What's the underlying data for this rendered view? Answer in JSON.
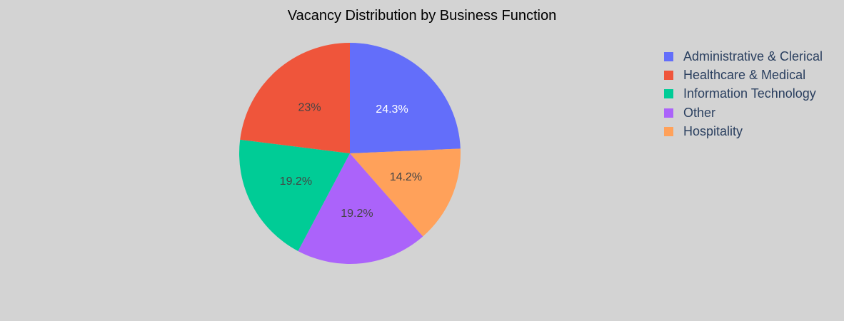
{
  "chart_data": {
    "type": "pie",
    "title": "Vacancy Distribution by Business Function",
    "slices": [
      {
        "label": "Administrative & Clerical",
        "value": 24.3,
        "text": "24.3%",
        "color": "#636efa",
        "text_color": "#ffffff"
      },
      {
        "label": "Hospitality",
        "value": 14.2,
        "text": "14.2%",
        "color": "#ffa15a",
        "text_color": "#444444"
      },
      {
        "label": "Other",
        "value": 19.2,
        "text": "19.2%",
        "color": "#ab63fa",
        "text_color": "#444444"
      },
      {
        "label": "Information Technology",
        "value": 19.2,
        "text": "19.2%",
        "color": "#00cc96",
        "text_color": "#444444"
      },
      {
        "label": "Healthcare & Medical",
        "value": 23,
        "text": "23%",
        "color": "#ef553b",
        "text_color": "#444444"
      }
    ],
    "legend": [
      {
        "label": "Administrative & Clerical",
        "color": "#636efa"
      },
      {
        "label": "Healthcare & Medical",
        "color": "#ef553b"
      },
      {
        "label": "Information Technology",
        "color": "#00cc96"
      },
      {
        "label": "Other",
        "color": "#ab63fa"
      },
      {
        "label": "Hospitality",
        "color": "#ffa15a"
      }
    ],
    "legend_position": "top-right",
    "direction": "clockwise"
  },
  "background_color": "#d3d3d3"
}
